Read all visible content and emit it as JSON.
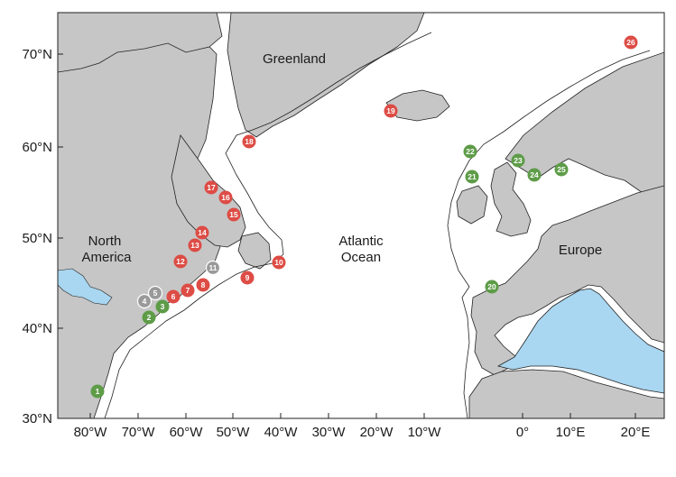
{
  "map": {
    "axes": {
      "x_ticks": [
        "80°W",
        "70°W",
        "60°W",
        "50°W",
        "40°W",
        "30°W",
        "20°W",
        "10°W",
        "0°",
        "10°E",
        "20°E"
      ],
      "y_ticks": [
        "70°N",
        "60°N",
        "50°N",
        "40°N",
        "30°N"
      ]
    },
    "labels": {
      "greenland": "Greenland",
      "north_america_1": "North",
      "north_america_2": "America",
      "atlantic_1": "Atlantic",
      "atlantic_2": "Ocean",
      "europe": "Europe"
    },
    "colors": {
      "land": "#c6c6c6",
      "ocean": "#ffffff",
      "water_inland": "#a9d6f0",
      "coast_line": "#222222",
      "marker_red": "#dd4c45",
      "marker_green": "#5e9c48",
      "marker_gray": "#9a9a9a"
    },
    "sites": [
      {
        "id": "1",
        "color": "green"
      },
      {
        "id": "2",
        "color": "green"
      },
      {
        "id": "3",
        "color": "green"
      },
      {
        "id": "4",
        "color": "gray"
      },
      {
        "id": "5",
        "color": "gray"
      },
      {
        "id": "6",
        "color": "red"
      },
      {
        "id": "7",
        "color": "red"
      },
      {
        "id": "8",
        "color": "red"
      },
      {
        "id": "9",
        "color": "red"
      },
      {
        "id": "10",
        "color": "red"
      },
      {
        "id": "11",
        "color": "gray"
      },
      {
        "id": "12",
        "color": "red"
      },
      {
        "id": "13",
        "color": "red"
      },
      {
        "id": "14",
        "color": "red"
      },
      {
        "id": "15",
        "color": "red"
      },
      {
        "id": "16",
        "color": "red"
      },
      {
        "id": "17",
        "color": "red"
      },
      {
        "id": "18",
        "color": "red"
      },
      {
        "id": "19",
        "color": "red"
      },
      {
        "id": "20",
        "color": "green"
      },
      {
        "id": "21",
        "color": "green"
      },
      {
        "id": "22",
        "color": "green"
      },
      {
        "id": "23",
        "color": "green"
      },
      {
        "id": "24",
        "color": "green"
      },
      {
        "id": "25",
        "color": "green"
      },
      {
        "id": "26",
        "color": "red"
      }
    ]
  }
}
